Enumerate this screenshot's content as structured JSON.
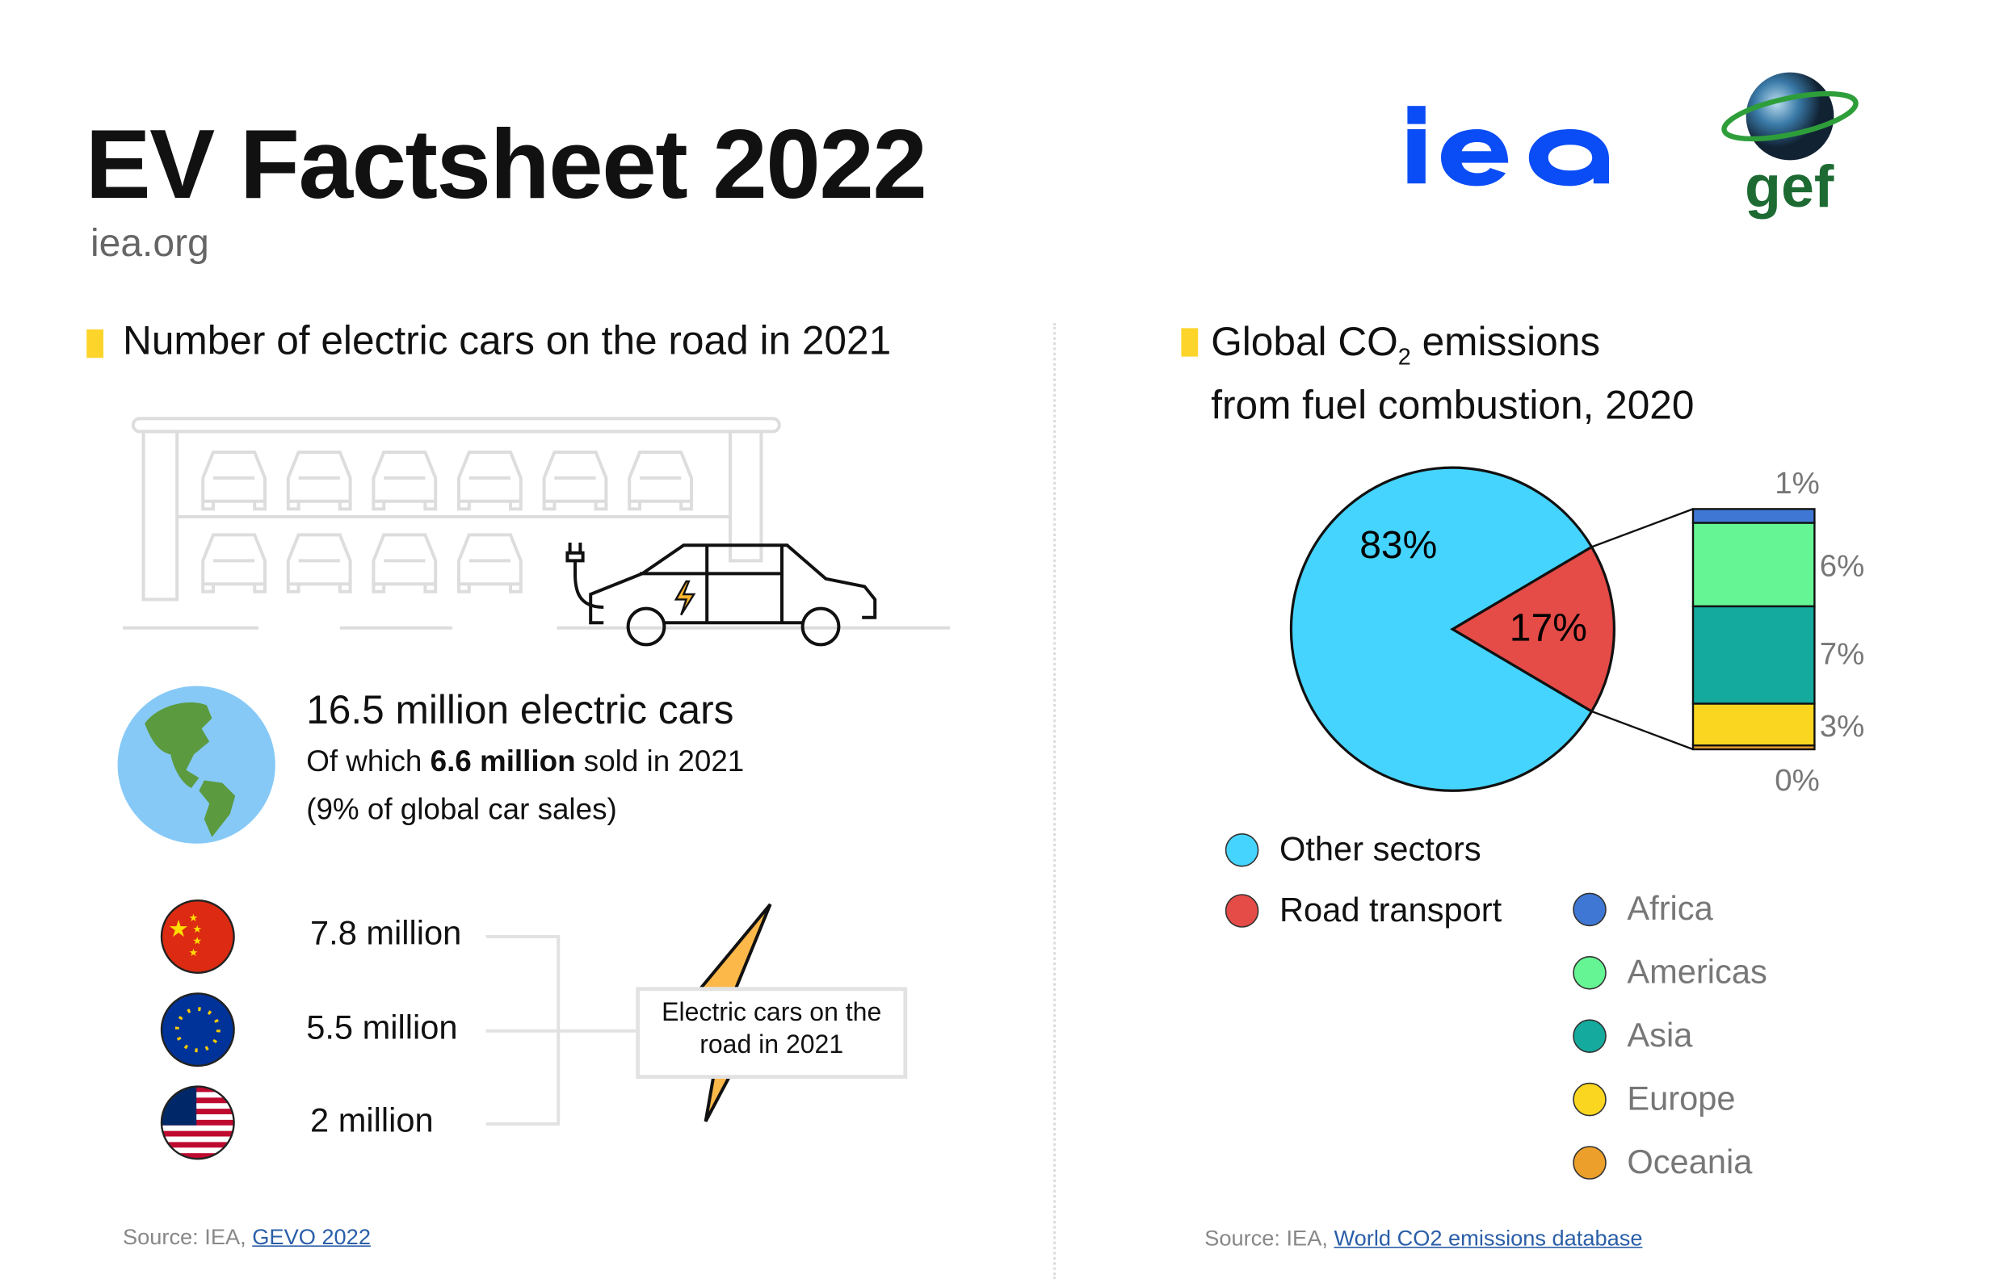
{
  "header": {
    "title": "EV Factsheet 2022",
    "subtitle": "iea.org",
    "logos": [
      "iea",
      "gef"
    ]
  },
  "left": {
    "section_title": "Number of electric cars on the road in 2021",
    "total": "16.5 million electric cars",
    "sold_prefix": "Of which ",
    "sold_value": "6.6 million",
    "sold_suffix": " sold in 2021",
    "share": "(9% of global car sales)",
    "countries": [
      {
        "flag": "china",
        "value": "7.8 million"
      },
      {
        "flag": "eu",
        "value": "5.5 million"
      },
      {
        "flag": "usa",
        "value": "2 million"
      }
    ],
    "callout": "Electric cars on the road in 2021",
    "source_prefix": "Source: IEA, ",
    "source_link": "GEVO 2022"
  },
  "right": {
    "title_a": "Global CO",
    "title_sub": "2",
    "title_b": " emissions",
    "title_line2": "from fuel combustion, 2020",
    "source_prefix": "Source: IEA, ",
    "source_link": "World CO2 emissions database"
  },
  "chart_data": {
    "type": "pie",
    "title": "Global CO2 emissions from fuel combustion, 2020",
    "pie": [
      {
        "name": "Other sectors",
        "value": 83,
        "label": "83%",
        "color": "#45d4fd"
      },
      {
        "name": "Road transport",
        "value": 17,
        "label": "17%",
        "color": "#e54b47"
      }
    ],
    "breakdown": {
      "of": "Road transport",
      "type": "stacked-bar",
      "segments": [
        {
          "name": "Africa",
          "value": 1,
          "label": "1%",
          "color": "#3f78d4"
        },
        {
          "name": "Americas",
          "value": 6,
          "label": "6%",
          "color": "#65f594"
        },
        {
          "name": "Asia",
          "value": 7,
          "label": "7%",
          "color": "#14aa9e"
        },
        {
          "name": "Europe",
          "value": 3,
          "label": "3%",
          "color": "#fbd620"
        },
        {
          "name": "Oceania",
          "value": 0,
          "label": "0%",
          "color": "#ec9f2a"
        }
      ]
    }
  }
}
